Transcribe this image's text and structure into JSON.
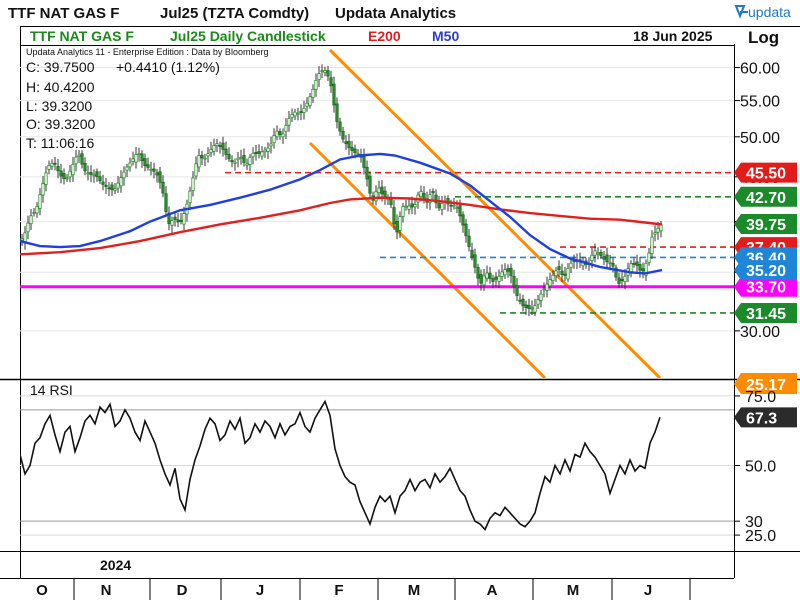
{
  "header": {
    "instrument": "TTF NAT GAS F",
    "contract": "Jul25 (TZTA Comdty)",
    "vendor": "Updata Analytics",
    "logo_text": "updata"
  },
  "subheader": {
    "name": "TTF NAT GAS F",
    "chart_desc": "Jul25 Daily Candlestick",
    "ma1_label": "E200",
    "ma2_label": "M50",
    "date": "18 Jun 2025",
    "scale": "Log"
  },
  "info": {
    "edition": "Updata Analytics 11 - Enterprise Edition : Data by Bloomberg",
    "close": "C: 39.7500",
    "change": "+0.4410 (1.12%)",
    "high": "H: 40.4200",
    "low": "L: 39.3200",
    "open": "O: 39.3200",
    "time": "T: 11:06:16"
  },
  "colors": {
    "ema200": "#e02020",
    "sma50": "#1f3fe0",
    "support": "#ff00ff",
    "channel": "#ff8c00",
    "candle": "#2f8f2f",
    "red_level": "#e21b1b",
    "green_level": "#1a8a2a",
    "blue_level": "#1e86d8",
    "title_green": "#1a8a1a",
    "blue_text": "#2a3fd0"
  },
  "chart_data": [
    {
      "type": "candlestick",
      "title": "Jul25 Daily Candlestick",
      "yscale": "log",
      "ylim": [
        26.5,
        63.5
      ],
      "y_ticks": [
        "30.00",
        "35.00",
        "40.00",
        "45.00",
        "50.00",
        "55.00",
        "60.00"
      ],
      "x_months": [
        "O",
        "N",
        "D",
        "J",
        "F",
        "M",
        "A",
        "M",
        "J"
      ],
      "year_label": "2024",
      "close_path": [
        [
          0,
          38.7
        ],
        [
          6,
          38.4
        ],
        [
          12,
          38.9
        ],
        [
          18,
          37.8
        ],
        [
          24,
          38.5
        ],
        [
          30,
          40.5
        ],
        [
          36,
          41.2
        ],
        [
          42,
          43.8
        ],
        [
          48,
          46.3
        ],
        [
          54,
          46.8
        ],
        [
          60,
          45.2
        ],
        [
          66,
          44.6
        ],
        [
          72,
          46.2
        ],
        [
          78,
          48.0
        ],
        [
          84,
          45.8
        ],
        [
          90,
          45.3
        ],
        [
          96,
          45.2
        ],
        [
          102,
          44.2
        ],
        [
          108,
          43.7
        ],
        [
          114,
          43.4
        ],
        [
          120,
          44.7
        ],
        [
          126,
          46.0
        ],
        [
          132,
          47.0
        ],
        [
          138,
          48.1
        ],
        [
          144,
          46.4
        ],
        [
          150,
          46.0
        ],
        [
          156,
          45.5
        ],
        [
          162,
          43.8
        ],
        [
          168,
          39.7
        ],
        [
          174,
          40.3
        ],
        [
          180,
          39.8
        ],
        [
          186,
          41.4
        ],
        [
          192,
          44.3
        ],
        [
          198,
          47.7
        ],
        [
          204,
          47.1
        ],
        [
          210,
          48.2
        ],
        [
          216,
          49.2
        ],
        [
          222,
          48.6
        ],
        [
          228,
          47.3
        ],
        [
          234,
          46.6
        ],
        [
          240,
          47.6
        ],
        [
          246,
          46.3
        ],
        [
          252,
          47.9
        ],
        [
          258,
          47.8
        ],
        [
          264,
          48.2
        ],
        [
          270,
          48.7
        ],
        [
          276,
          50.9
        ],
        [
          282,
          50.0
        ],
        [
          288,
          52.3
        ],
        [
          294,
          53.4
        ],
        [
          300,
          53.1
        ],
        [
          306,
          54.3
        ],
        [
          312,
          56.2
        ],
        [
          318,
          58.9
        ],
        [
          324,
          59.8
        ],
        [
          330,
          58.1
        ],
        [
          336,
          52.5
        ],
        [
          342,
          49.9
        ],
        [
          348,
          48.7
        ],
        [
          354,
          48.0
        ],
        [
          360,
          47.8
        ],
        [
          366,
          45.3
        ],
        [
          372,
          42.0
        ],
        [
          378,
          43.9
        ],
        [
          384,
          42.6
        ],
        [
          390,
          42.5
        ],
        [
          396,
          38.4
        ],
        [
          402,
          41.6
        ],
        [
          408,
          41.7
        ],
        [
          414,
          41.5
        ],
        [
          420,
          43.6
        ],
        [
          426,
          41.8
        ],
        [
          432,
          43.5
        ],
        [
          438,
          41.3
        ],
        [
          444,
          42.3
        ],
        [
          450,
          41.7
        ],
        [
          456,
          41.8
        ],
        [
          462,
          40.0
        ],
        [
          468,
          37.8
        ],
        [
          474,
          35.8
        ],
        [
          480,
          33.8
        ],
        [
          486,
          35.1
        ],
        [
          492,
          34.1
        ],
        [
          498,
          34.5
        ],
        [
          504,
          35.3
        ],
        [
          510,
          35.0
        ],
        [
          516,
          33.1
        ],
        [
          522,
          32.1
        ],
        [
          528,
          31.8
        ],
        [
          534,
          31.9
        ],
        [
          540,
          32.9
        ],
        [
          546,
          33.8
        ],
        [
          552,
          34.6
        ],
        [
          558,
          35.4
        ],
        [
          564,
          34.5
        ],
        [
          570,
          35.8
        ],
        [
          576,
          36.1
        ],
        [
          582,
          36.0
        ],
        [
          588,
          35.6
        ],
        [
          594,
          37.1
        ],
        [
          600,
          36.7
        ],
        [
          606,
          36.0
        ],
        [
          612,
          35.9
        ],
        [
          618,
          33.9
        ],
        [
          624,
          34.4
        ],
        [
          630,
          35.8
        ],
        [
          636,
          35.8
        ],
        [
          642,
          34.9
        ],
        [
          648,
          36.3
        ],
        [
          652,
          38.4
        ],
        [
          658,
          39.3
        ],
        [
          662,
          39.75
        ]
      ],
      "ema200_path": [
        [
          20,
          36.7
        ],
        [
          60,
          36.9
        ],
        [
          100,
          37.3
        ],
        [
          140,
          38.0
        ],
        [
          180,
          38.9
        ],
        [
          220,
          39.7
        ],
        [
          260,
          40.4
        ],
        [
          300,
          41.2
        ],
        [
          330,
          42.0
        ],
        [
          350,
          42.4
        ],
        [
          380,
          42.6
        ],
        [
          410,
          42.5
        ],
        [
          440,
          42.2
        ],
        [
          470,
          41.8
        ],
        [
          500,
          41.3
        ],
        [
          530,
          40.9
        ],
        [
          560,
          40.6
        ],
        [
          590,
          40.3
        ],
        [
          620,
          40.2
        ],
        [
          645,
          39.9
        ],
        [
          662,
          39.7
        ]
      ],
      "sma50_path": [
        [
          20,
          38.0
        ],
        [
          40,
          37.5
        ],
        [
          60,
          37.4
        ],
        [
          80,
          37.5
        ],
        [
          100,
          38.0
        ],
        [
          130,
          39.0
        ],
        [
          150,
          40.0
        ],
        [
          180,
          41.2
        ],
        [
          210,
          41.8
        ],
        [
          240,
          42.6
        ],
        [
          270,
          43.5
        ],
        [
          300,
          44.7
        ],
        [
          320,
          45.8
        ],
        [
          340,
          47.1
        ],
        [
          360,
          47.6
        ],
        [
          380,
          47.8
        ],
        [
          395,
          47.6
        ],
        [
          420,
          46.7
        ],
        [
          450,
          45.4
        ],
        [
          470,
          44.0
        ],
        [
          490,
          42.2
        ],
        [
          510,
          40.5
        ],
        [
          530,
          38.6
        ],
        [
          550,
          37.2
        ],
        [
          570,
          36.3
        ],
        [
          600,
          35.5
        ],
        [
          630,
          35.0
        ],
        [
          645,
          34.9
        ],
        [
          662,
          35.2
        ]
      ],
      "levels": [
        {
          "value": 45.5,
          "label": "45.50",
          "style": "red",
          "x_start": 225
        },
        {
          "value": 42.7,
          "label": "42.70",
          "style": "green",
          "x_start": 455
        },
        {
          "value": 37.4,
          "label": "37.40",
          "style": "red",
          "x_start": 560
        },
        {
          "value": 36.4,
          "label": "36.40",
          "style": "blue",
          "x_start": 380
        },
        {
          "value": 33.7,
          "label": "33.70",
          "style": "magenta",
          "x_start": 20
        },
        {
          "value": 31.45,
          "label": "31.45",
          "style": "green",
          "x_start": 500
        }
      ],
      "price_tags": [
        {
          "value": 39.75,
          "label": "39.75",
          "style": "green"
        },
        {
          "value": 35.2,
          "label": "35.20",
          "style": "blue"
        }
      ],
      "channel_label": "25.17"
    },
    {
      "type": "line",
      "title": "14 RSI",
      "ylim": [
        20,
        80
      ],
      "y_ticks": [
        "75.0",
        "50.0",
        "30",
        "25.0"
      ],
      "current_label": "67.3",
      "values": [
        [
          20,
          54
        ],
        [
          25,
          47
        ],
        [
          30,
          50
        ],
        [
          35,
          58
        ],
        [
          40,
          60
        ],
        [
          45,
          65
        ],
        [
          50,
          68
        ],
        [
          55,
          61
        ],
        [
          60,
          55
        ],
        [
          65,
          62
        ],
        [
          70,
          64
        ],
        [
          75,
          55
        ],
        [
          80,
          60
        ],
        [
          85,
          66
        ],
        [
          90,
          68
        ],
        [
          95,
          65
        ],
        [
          100,
          71
        ],
        [
          105,
          69
        ],
        [
          110,
          72
        ],
        [
          115,
          64
        ],
        [
          120,
          66
        ],
        [
          125,
          70
        ],
        [
          130,
          67
        ],
        [
          135,
          62
        ],
        [
          140,
          59
        ],
        [
          145,
          66
        ],
        [
          150,
          62
        ],
        [
          155,
          58
        ],
        [
          160,
          52
        ],
        [
          165,
          47
        ],
        [
          170,
          43
        ],
        [
          175,
          49
        ],
        [
          180,
          38
        ],
        [
          185,
          34
        ],
        [
          190,
          45
        ],
        [
          195,
          52
        ],
        [
          200,
          57
        ],
        [
          205,
          63
        ],
        [
          210,
          67
        ],
        [
          215,
          65
        ],
        [
          220,
          59
        ],
        [
          225,
          61
        ],
        [
          230,
          66
        ],
        [
          235,
          63
        ],
        [
          240,
          67
        ],
        [
          245,
          58
        ],
        [
          250,
          60
        ],
        [
          255,
          65
        ],
        [
          260,
          62
        ],
        [
          265,
          66
        ],
        [
          270,
          64
        ],
        [
          275,
          60
        ],
        [
          280,
          65
        ],
        [
          285,
          61
        ],
        [
          290,
          64
        ],
        [
          295,
          65
        ],
        [
          300,
          69
        ],
        [
          305,
          64
        ],
        [
          310,
          62
        ],
        [
          315,
          67
        ],
        [
          320,
          70
        ],
        [
          325,
          73
        ],
        [
          330,
          68
        ],
        [
          335,
          56
        ],
        [
          340,
          50
        ],
        [
          345,
          46
        ],
        [
          350,
          44
        ],
        [
          355,
          43
        ],
        [
          360,
          37
        ],
        [
          365,
          33
        ],
        [
          370,
          29
        ],
        [
          375,
          35
        ],
        [
          380,
          39
        ],
        [
          385,
          37
        ],
        [
          390,
          39
        ],
        [
          395,
          33
        ],
        [
          400,
          39
        ],
        [
          405,
          41
        ],
        [
          410,
          45
        ],
        [
          415,
          41
        ],
        [
          420,
          44
        ],
        [
          425,
          45
        ],
        [
          430,
          42
        ],
        [
          435,
          47
        ],
        [
          440,
          44
        ],
        [
          445,
          46
        ],
        [
          450,
          49
        ],
        [
          455,
          45
        ],
        [
          460,
          41
        ],
        [
          465,
          39
        ],
        [
          470,
          34
        ],
        [
          475,
          30
        ],
        [
          480,
          29
        ],
        [
          485,
          27
        ],
        [
          490,
          31
        ],
        [
          495,
          33
        ],
        [
          500,
          32
        ],
        [
          505,
          35
        ],
        [
          510,
          33
        ],
        [
          515,
          31
        ],
        [
          520,
          29
        ],
        [
          525,
          28
        ],
        [
          530,
          30
        ],
        [
          535,
          33
        ],
        [
          540,
          40
        ],
        [
          545,
          46
        ],
        [
          550,
          44
        ],
        [
          555,
          50
        ],
        [
          560,
          47
        ],
        [
          565,
          52
        ],
        [
          570,
          48
        ],
        [
          575,
          54
        ],
        [
          580,
          53
        ],
        [
          585,
          58
        ],
        [
          590,
          55
        ],
        [
          595,
          53
        ],
        [
          600,
          50
        ],
        [
          605,
          47
        ],
        [
          610,
          40
        ],
        [
          615,
          45
        ],
        [
          620,
          50
        ],
        [
          625,
          47
        ],
        [
          630,
          52
        ],
        [
          635,
          48
        ],
        [
          640,
          50
        ],
        [
          645,
          49
        ],
        [
          650,
          58
        ],
        [
          655,
          62
        ],
        [
          660,
          67.3
        ]
      ]
    }
  ]
}
